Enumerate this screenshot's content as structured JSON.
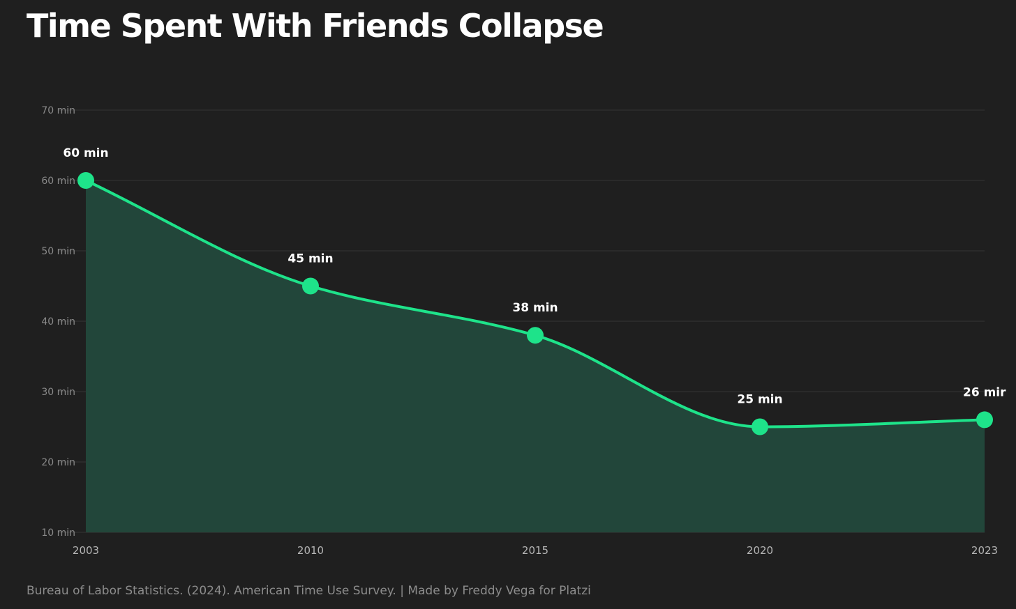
{
  "title": "Time Spent With Friends Collapse",
  "source": "Bureau of Labor Statistics. (2024). American Time Use Survey. | Made by Freddy Vega for Platzi",
  "colors": {
    "background": "#1f1f1f",
    "line": "#1ee38a",
    "area": "#22463a",
    "grid": "#363636"
  },
  "chart_data": {
    "type": "area",
    "x": [
      "2003",
      "2010",
      "2015",
      "2020",
      "2023"
    ],
    "values": [
      60,
      45,
      38,
      25,
      26
    ],
    "data_labels": [
      "60 min",
      "45 min",
      "38 min",
      "25 min",
      "26 mir"
    ],
    "y_ticks": [
      10,
      20,
      30,
      40,
      50,
      60,
      70
    ],
    "y_tick_labels": [
      "10 min",
      "20 min",
      "30 min",
      "40 min",
      "50 min",
      "60 min",
      "70 min"
    ],
    "ylim": [
      10,
      70
    ],
    "grid": true,
    "legend": "none"
  }
}
